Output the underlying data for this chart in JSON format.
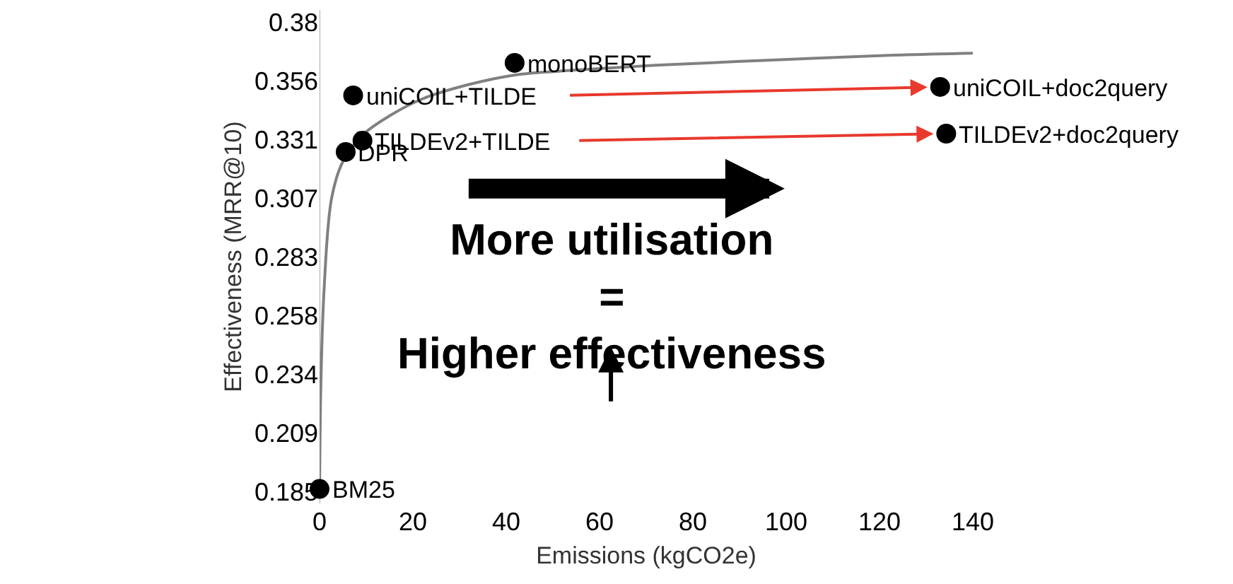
{
  "chart_data": {
    "type": "scatter",
    "xlabel": "Emissions (kgCO2e)",
    "ylabel": "Effectiveness (MRR@10)",
    "xlim": [
      0,
      140
    ],
    "xticks": [
      0,
      20,
      40,
      60,
      80,
      100,
      120,
      140
    ],
    "ylim": [
      0.18,
      0.385
    ],
    "yticks": [
      {
        "value": 0.185,
        "label": "0.185"
      },
      {
        "value": 0.209375,
        "label": "0.209"
      },
      {
        "value": 0.23375,
        "label": "0.234"
      },
      {
        "value": 0.258125,
        "label": "0.258"
      },
      {
        "value": 0.2825,
        "label": "0.283"
      },
      {
        "value": 0.306875,
        "label": "0.307"
      },
      {
        "value": 0.33125,
        "label": "0.331"
      },
      {
        "value": 0.355625,
        "label": "0.356"
      },
      {
        "value": 0.38,
        "label": "0.38"
      }
    ],
    "grid": false,
    "marker": "circle",
    "series": [
      {
        "type": "line",
        "color": "#808080",
        "marker": "none",
        "x": [
          0,
          0.3,
          1,
          2.6,
          5,
          9.2,
          15,
          22,
          32,
          42,
          55,
          72,
          95,
          120,
          140
        ],
        "values": [
          0.185,
          0.231,
          0.27,
          0.307,
          0.322,
          0.333,
          0.341,
          0.348,
          0.354,
          0.358,
          0.36,
          0.362,
          0.364,
          0.366,
          0.367
        ]
      },
      {
        "color": "#000000",
        "x": [
          0,
          5.6,
          7.2,
          9.2,
          41.8,
          133,
          134.3
        ],
        "values": [
          0.186,
          0.326,
          0.3495,
          0.3307,
          0.363,
          0.353,
          0.3336
        ]
      }
    ],
    "annotations": [
      {
        "text": "BM25",
        "x": 0,
        "y": 0.186
      },
      {
        "text": "DPR",
        "x": 5.6,
        "y": 0.326
      },
      {
        "text": "uniCOIL+TILDE",
        "x": 7.2,
        "y": 0.3495
      },
      {
        "text": "TILDEv2+TILDE",
        "x": 9.2,
        "y": 0.3307
      },
      {
        "text": "monoBERT",
        "x": 41.8,
        "y": 0.363
      },
      {
        "text": "uniCOIL+doc2query",
        "x": 133,
        "y": 0.353
      },
      {
        "text": "TILDEv2+doc2query",
        "x": 134.3,
        "y": 0.3336
      },
      "More utilisation\n=\nHigher effectiveness"
    ]
  }
}
